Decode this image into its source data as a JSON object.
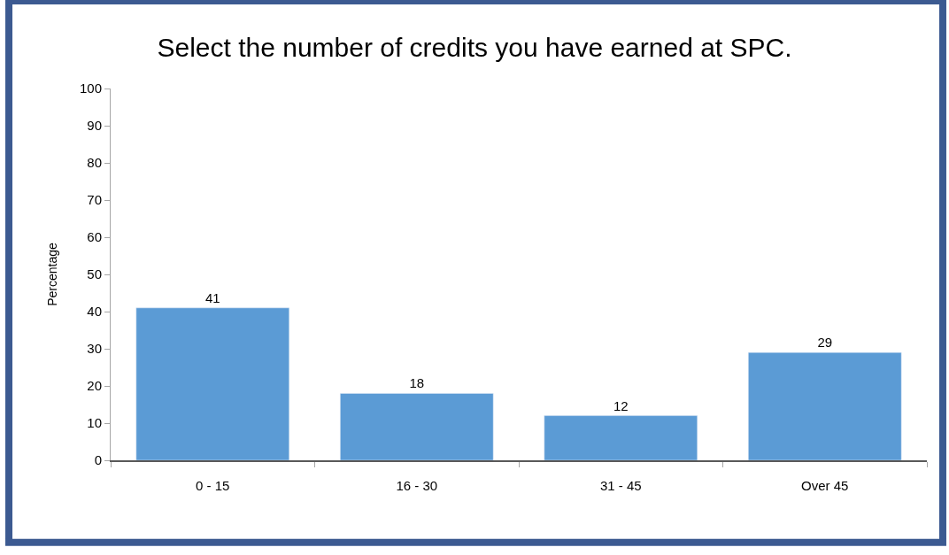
{
  "chart_data": {
    "type": "bar",
    "title": "Select the number of credits you have earned at SPC.",
    "ylabel": "Percentage",
    "categories": [
      "0 - 15",
      "16 - 30",
      "31 - 45",
      "Over 45"
    ],
    "values": [
      41,
      18,
      12,
      29
    ],
    "color": "#5b9bd5",
    "ylim": [
      0,
      100
    ],
    "yticks": [
      0,
      10,
      20,
      30,
      40,
      50,
      60,
      70,
      80,
      90,
      100
    ],
    "data_labels": true
  }
}
